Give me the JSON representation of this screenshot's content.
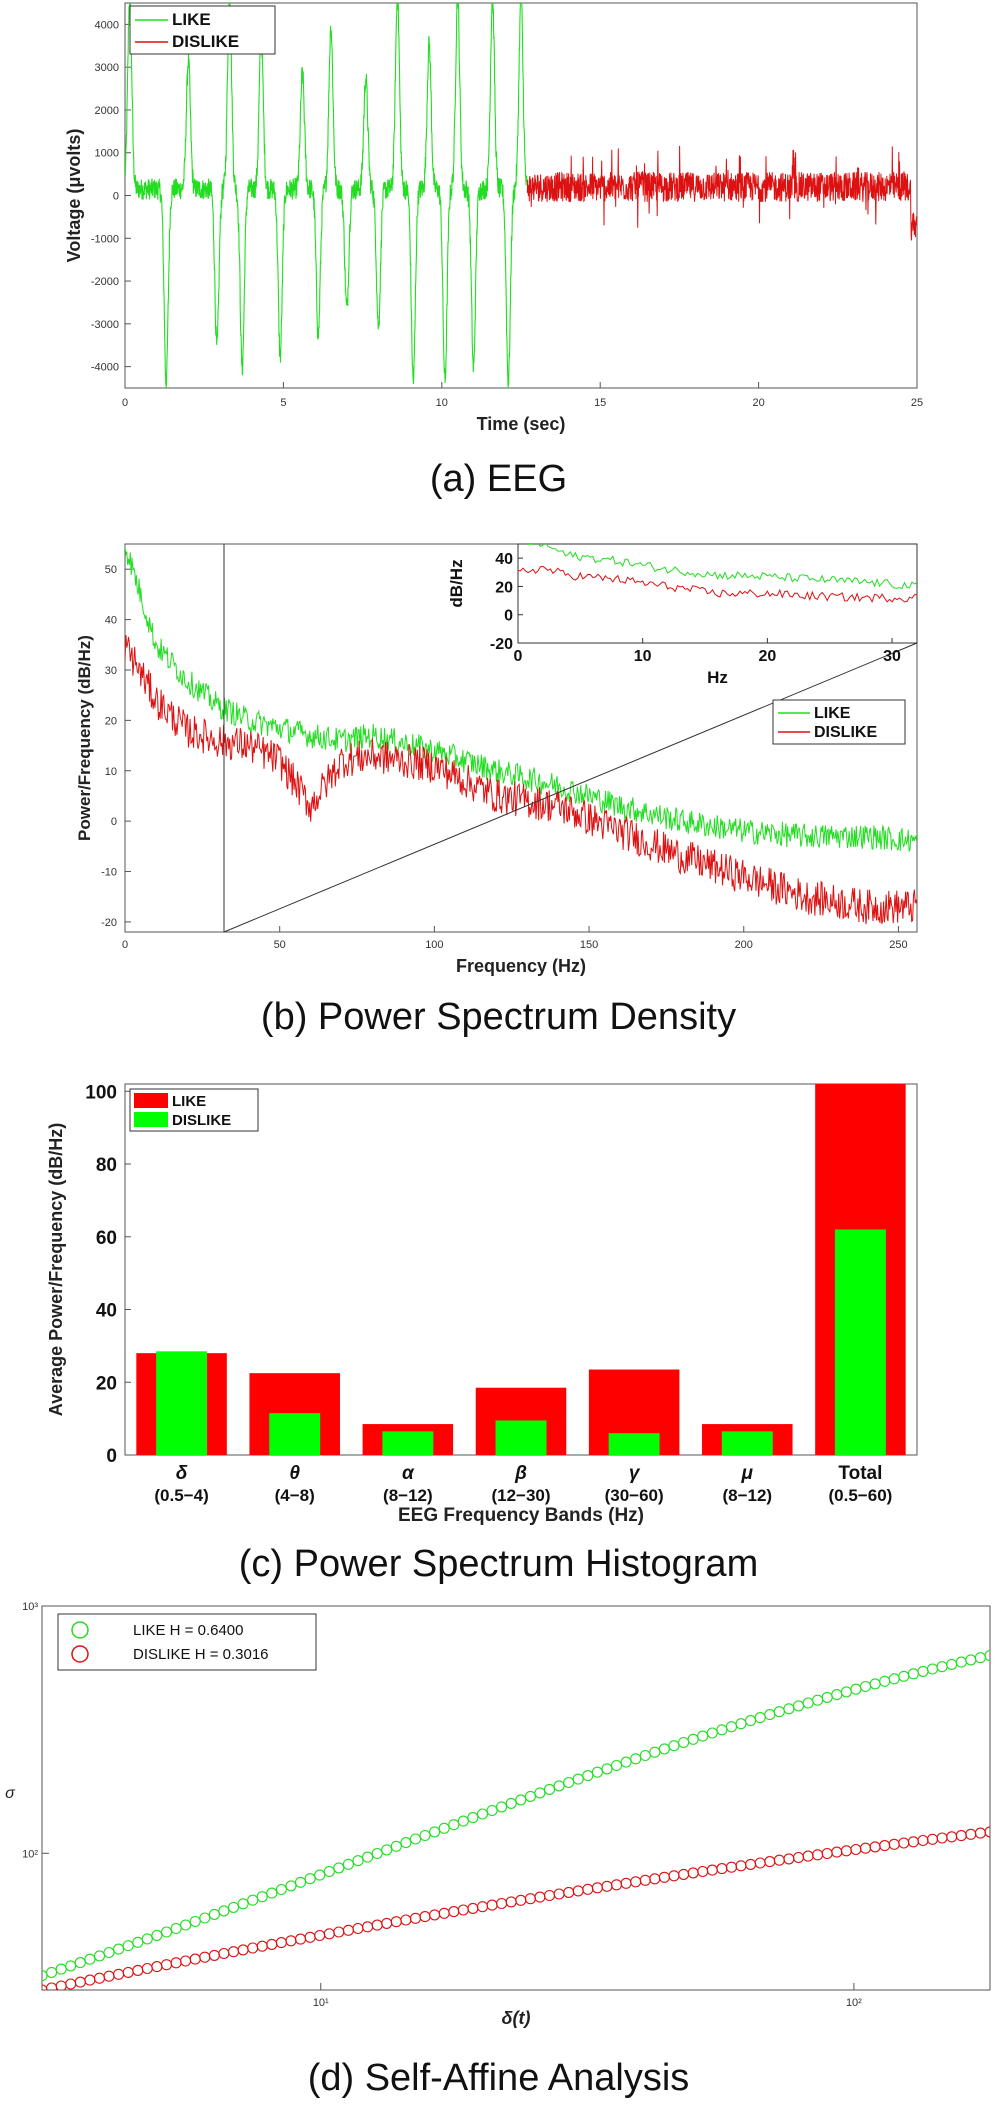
{
  "captions": {
    "a": "(a) EEG",
    "b": "(b) Power Spectrum Density",
    "c": "(c) Power Spectrum Histogram",
    "d": "(d) Self-Affine Analysis"
  },
  "colors": {
    "like": "#22dd22",
    "dislike": "#dd1111",
    "axis": "#555555"
  },
  "chart_data": [
    {
      "id": "eeg",
      "type": "line",
      "title": "",
      "xlabel": "Time (sec)",
      "ylabel": "Voltage (μvolts)",
      "xlim": [
        0,
        25
      ],
      "ylim": [
        -4500,
        4500
      ],
      "xticks": [
        0,
        5,
        10,
        15,
        20,
        25
      ],
      "yticks": [
        -4000,
        -3000,
        -2000,
        -1000,
        0,
        1000,
        2000,
        3000,
        4000
      ],
      "legend": [
        "LIKE",
        "DISLIKE"
      ],
      "legend_position": "top-left",
      "series": [
        {
          "name": "LIKE",
          "x_range": [
            0,
            12.7
          ],
          "description_mode": "large spikes",
          "spikes": [
            [
              0.15,
              4500
            ],
            [
              1.3,
              -4500
            ],
            [
              2.0,
              3000
            ],
            [
              2.9,
              -3700
            ],
            [
              3.3,
              4500
            ],
            [
              3.7,
              -4200
            ],
            [
              4.3,
              3600
            ],
            [
              4.9,
              -3900
            ],
            [
              5.6,
              2700
            ],
            [
              6.1,
              -3400
            ],
            [
              6.5,
              3800
            ],
            [
              7.0,
              -2800
            ],
            [
              7.6,
              2600
            ],
            [
              8.0,
              -3200
            ],
            [
              8.6,
              4500
            ],
            [
              9.1,
              -4500
            ],
            [
              9.6,
              3400
            ],
            [
              10.1,
              -4500
            ],
            [
              10.5,
              4500
            ],
            [
              11.0,
              -4200
            ],
            [
              11.6,
              4500
            ],
            [
              12.1,
              -4500
            ],
            [
              12.5,
              4500
            ]
          ]
        },
        {
          "name": "DISLIKE",
          "x_range": [
            12.7,
            25
          ],
          "description_mode": "noisy",
          "baseline": 200,
          "noise_amplitude": 700
        }
      ]
    },
    {
      "id": "psd",
      "type": "line",
      "xlabel": "Frequency (Hz)",
      "ylabel": "Power/Frequency (dB/Hz)",
      "xlim": [
        0,
        256
      ],
      "ylim": [
        -22,
        55
      ],
      "xticks": [
        0,
        50,
        100,
        150,
        200,
        250
      ],
      "yticks": [
        -20,
        -10,
        0,
        10,
        20,
        30,
        40,
        50
      ],
      "legend": [
        "LIKE",
        "DISLIKE"
      ],
      "legend_position": "middle-right",
      "series": [
        {
          "name": "LIKE",
          "x": [
            0,
            10,
            20,
            30,
            40,
            60,
            70,
            80,
            100,
            120,
            140,
            160,
            180,
            200,
            220,
            240,
            256
          ],
          "y": [
            55,
            35,
            28,
            23,
            20,
            17,
            16,
            17,
            14,
            10,
            7,
            3,
            0,
            -2,
            -3,
            -3,
            -4
          ]
        },
        {
          "name": "DISLIKE",
          "x": [
            0,
            10,
            20,
            30,
            40,
            50,
            60,
            70,
            80,
            100,
            120,
            140,
            160,
            180,
            200,
            220,
            240,
            256
          ],
          "y": [
            35,
            24,
            18,
            16,
            15,
            12,
            3,
            12,
            13,
            11,
            5,
            3,
            -2,
            -7,
            -11,
            -15,
            -17,
            -17
          ]
        }
      ],
      "inset": {
        "xlabel": "Hz",
        "ylabel": "dB/Hz",
        "xlim": [
          0,
          32
        ],
        "ylim": [
          -20,
          50
        ],
        "xticks": [
          0,
          10,
          20,
          30
        ],
        "yticks": [
          -20,
          0,
          20,
          40
        ],
        "series": [
          {
            "name": "LIKE",
            "x": [
              0,
              2,
              4,
              8,
              12,
              16,
              20,
              24,
              28,
              32
            ],
            "y": [
              52,
              50,
              42,
              38,
              32,
              28,
              27,
              25,
              23,
              20
            ]
          },
          {
            "name": "DISLIKE",
            "x": [
              0,
              2,
              4,
              8,
              12,
              16,
              20,
              24,
              28,
              32
            ],
            "y": [
              30,
              33,
              28,
              25,
              20,
              15,
              15,
              13,
              12,
              12
            ]
          }
        ]
      }
    },
    {
      "id": "hist",
      "type": "bar",
      "xlabel": "EEG Frequency Bands (Hz)",
      "ylabel": "Average Power/Frequency (dB/Hz)",
      "ylim": [
        0,
        102
      ],
      "yticks": [
        0,
        20,
        40,
        60,
        80,
        100
      ],
      "categories": [
        {
          "symbol": "δ",
          "range": "(0.5−4)"
        },
        {
          "symbol": "θ",
          "range": "(4−8)"
        },
        {
          "symbol": "α",
          "range": "(8−12)"
        },
        {
          "symbol": "β",
          "range": "(12−30)"
        },
        {
          "symbol": "γ",
          "range": "(30−60)"
        },
        {
          "symbol": "μ",
          "range": "(8−12)"
        },
        {
          "symbol": "Total",
          "range": "(0.5−60)"
        }
      ],
      "legend": [
        "LIKE",
        "DISLIKE"
      ],
      "legend_position": "top-left",
      "series": [
        {
          "name": "LIKE",
          "values": [
            28,
            22.5,
            8.5,
            18.5,
            23.5,
            8.5,
            102
          ]
        },
        {
          "name": "DISLIKE",
          "values": [
            28.5,
            11.5,
            6.5,
            9.5,
            6,
            6.5,
            62
          ]
        }
      ]
    },
    {
      "id": "selfaffine",
      "type": "scatter",
      "xlabel": "δ(t)",
      "ylabel": "σ",
      "xscale": "log",
      "yscale": "log",
      "xlim": [
        3.0,
        180
      ],
      "ylim": [
        28,
        1000
      ],
      "xticks": [
        {
          "value": 10,
          "label": "10¹"
        },
        {
          "value": 100,
          "label": "10²"
        }
      ],
      "yticks": [
        {
          "value": 100,
          "label": "10²"
        },
        {
          "value": 1000,
          "label": "10³"
        }
      ],
      "legend": [
        "LIKE H = 0.6400",
        "DISLIKE H = 0.3016"
      ],
      "legend_position": "top-left",
      "series": [
        {
          "name": "LIKE H = 0.6400",
          "x_start": 3.0,
          "x_end": 180,
          "y_start": 32,
          "y_end": 630,
          "points": 100
        },
        {
          "name": "DISLIKE H = 0.3016",
          "x_start": 3.0,
          "x_end": 180,
          "y_start": 28,
          "y_end": 122,
          "points": 100
        }
      ]
    }
  ]
}
